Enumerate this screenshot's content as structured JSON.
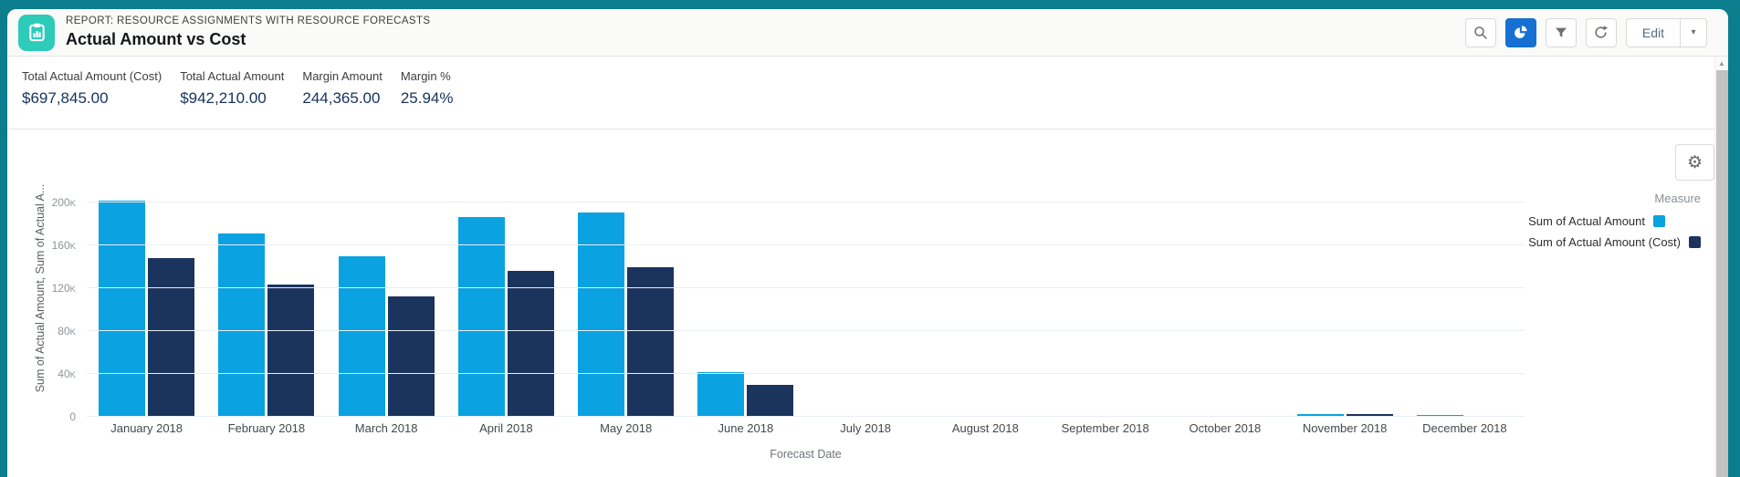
{
  "header": {
    "report_type_label": "REPORT: RESOURCE ASSIGNMENTS WITH RESOURCE FORECASTS",
    "title": "Actual Amount vs Cost",
    "toolbar": {
      "edit_label": "Edit"
    }
  },
  "metrics": [
    {
      "label": "Total Actual Amount (Cost)",
      "value": "$697,845.00"
    },
    {
      "label": "Total Actual Amount",
      "value": "$942,210.00"
    },
    {
      "label": "Margin Amount",
      "value": "244,365.00"
    },
    {
      "label": "Margin %",
      "value": "25.94%"
    }
  ],
  "legend": {
    "title": "Measure"
  },
  "icons": {
    "gear_glyph": "⚙",
    "scroll_up_glyph": "▲",
    "chevron_down_glyph": "▾"
  },
  "colors": {
    "frame_teal": "#0a7e8c",
    "report_icon_teal": "#2ccbba",
    "active_button_blue": "#1570d2",
    "metric_value_navy": "#16325c",
    "series_light_blue": "#0aa2e0",
    "series_navy": "#1b345e",
    "gridline": "#e9eff5"
  },
  "chart_data": {
    "type": "bar",
    "title": "Actual Amount vs Cost",
    "categories": [
      "January 2018",
      "February 2018",
      "March 2018",
      "April 2018",
      "May 2018",
      "June 2018",
      "July 2018",
      "August 2018",
      "September 2018",
      "October 2018",
      "November 2018",
      "December 2018"
    ],
    "series": [
      {
        "name": "Sum of Actual Amount",
        "color": "#0aa2e0",
        "values_k": [
          202,
          171,
          150,
          186,
          191,
          42,
          0,
          0,
          0,
          1,
          2.5,
          2
        ]
      },
      {
        "name": "Sum of Actual Amount (Cost)",
        "color": "#1b345e",
        "values_k": [
          148,
          123,
          112,
          136,
          140,
          30,
          0,
          0,
          0,
          0.5,
          2.5,
          0.5
        ]
      }
    ],
    "xlabel": "Forecast Date",
    "ylabel": "Sum of Actual Amount, Sum of Actual A...",
    "y_ticks": [
      "0",
      "40K",
      "80K",
      "120K",
      "160K",
      "200K"
    ],
    "y_tick_step_k": 40,
    "ylim_k": [
      0,
      200
    ],
    "unit": "thousands",
    "grid": true,
    "legend_position": "right"
  }
}
